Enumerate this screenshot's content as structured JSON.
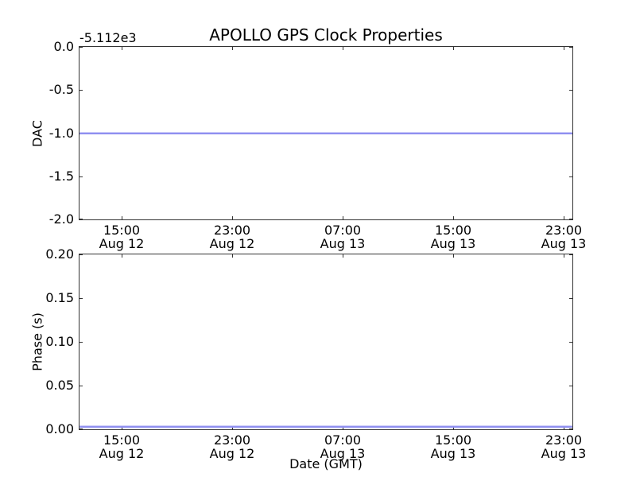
{
  "figure": {
    "background_color": "#ffffff",
    "spine_color": "#333333",
    "text_color": "#000000"
  },
  "chart_data": [
    {
      "type": "line",
      "title": "APOLLO GPS Clock Properties",
      "ylabel": "DAC",
      "y_axis_offset_text": "-5.112e3",
      "ylim": [
        -2.0,
        0.0
      ],
      "grid": false,
      "legend": "none",
      "yticks": [
        {
          "label": "0.0",
          "value": 0.0
        },
        {
          "label": "-0.5",
          "value": -0.5
        },
        {
          "label": "-1.0",
          "value": -1.0
        },
        {
          "label": "-1.5",
          "value": -1.5
        },
        {
          "label": "-2.0",
          "value": -2.0
        }
      ],
      "xticks": [
        {
          "time": "15:00",
          "date": "Aug 12",
          "pos": 0.0855
        },
        {
          "time": "23:00",
          "date": "Aug 12",
          "pos": 0.3097
        },
        {
          "time": "07:00",
          "date": "Aug 13",
          "pos": 0.5339
        },
        {
          "time": "15:00",
          "date": "Aug 13",
          "pos": 0.7581
        },
        {
          "time": "23:00",
          "date": "Aug 13",
          "pos": 0.9823
        }
      ],
      "series": [
        {
          "name": "DAC",
          "color": "#8f8ff0",
          "shape": "constant-horizontal-line",
          "constant_value": -1.0
        }
      ]
    },
    {
      "type": "line",
      "title": "",
      "ylabel": "Phase (s)",
      "xlabel": "Date (GMT)",
      "ylim": [
        0.0,
        0.2
      ],
      "grid": false,
      "legend": "none",
      "yticks": [
        {
          "label": "0.20",
          "value": 0.2
        },
        {
          "label": "0.15",
          "value": 0.15
        },
        {
          "label": "0.10",
          "value": 0.1
        },
        {
          "label": "0.05",
          "value": 0.05
        },
        {
          "label": "0.00",
          "value": 0.0
        }
      ],
      "xticks": [
        {
          "time": "15:00",
          "date": "Aug 12",
          "pos": 0.0855
        },
        {
          "time": "23:00",
          "date": "Aug 12",
          "pos": 0.3097
        },
        {
          "time": "07:00",
          "date": "Aug 13",
          "pos": 0.5339
        },
        {
          "time": "15:00",
          "date": "Aug 13",
          "pos": 0.7581
        },
        {
          "time": "23:00",
          "date": "Aug 13",
          "pos": 0.9823
        }
      ],
      "series": [
        {
          "name": "Phase",
          "color": "#8f8ff0",
          "shape": "constant-horizontal-line",
          "constant_value": 0.003
        }
      ]
    }
  ]
}
